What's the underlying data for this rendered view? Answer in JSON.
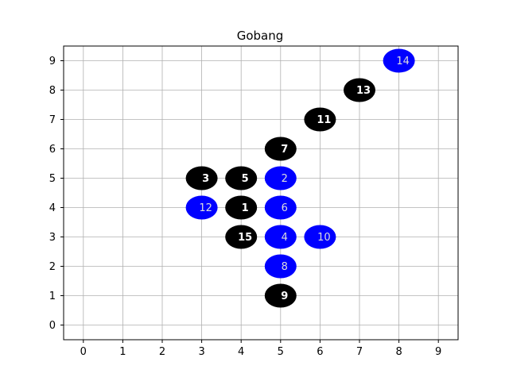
{
  "title": "Gobang",
  "board": {
    "x_ticks": [
      "0",
      "1",
      "2",
      "3",
      "4",
      "5",
      "6",
      "7",
      "8",
      "9"
    ],
    "y_ticks": [
      "0",
      "1",
      "2",
      "3",
      "4",
      "5",
      "6",
      "7",
      "8",
      "9"
    ],
    "xlim": [
      -0.5,
      9.5
    ],
    "ylim": [
      -0.5,
      9.5
    ],
    "grid": true
  },
  "colors": {
    "black_stone": "#000000",
    "blue_stone": "#0000ff",
    "black_label": "#ffffff",
    "blue_label": "#dddddd"
  },
  "stones": [
    {
      "move": "1",
      "x": 4,
      "y": 4,
      "color": "black"
    },
    {
      "move": "2",
      "x": 5,
      "y": 5,
      "color": "blue"
    },
    {
      "move": "3",
      "x": 3,
      "y": 5,
      "color": "black"
    },
    {
      "move": "4",
      "x": 5,
      "y": 3,
      "color": "blue"
    },
    {
      "move": "5",
      "x": 4,
      "y": 5,
      "color": "black"
    },
    {
      "move": "6",
      "x": 5,
      "y": 4,
      "color": "blue"
    },
    {
      "move": "7",
      "x": 5,
      "y": 6,
      "color": "black"
    },
    {
      "move": "8",
      "x": 5,
      "y": 2,
      "color": "blue"
    },
    {
      "move": "9",
      "x": 5,
      "y": 1,
      "color": "black"
    },
    {
      "move": "10",
      "x": 6,
      "y": 3,
      "color": "blue"
    },
    {
      "move": "11",
      "x": 6,
      "y": 7,
      "color": "black"
    },
    {
      "move": "12",
      "x": 3,
      "y": 4,
      "color": "blue"
    },
    {
      "move": "13",
      "x": 7,
      "y": 8,
      "color": "black"
    },
    {
      "move": "14",
      "x": 8,
      "y": 9,
      "color": "blue"
    },
    {
      "move": "15",
      "x": 4,
      "y": 3,
      "color": "black"
    }
  ]
}
